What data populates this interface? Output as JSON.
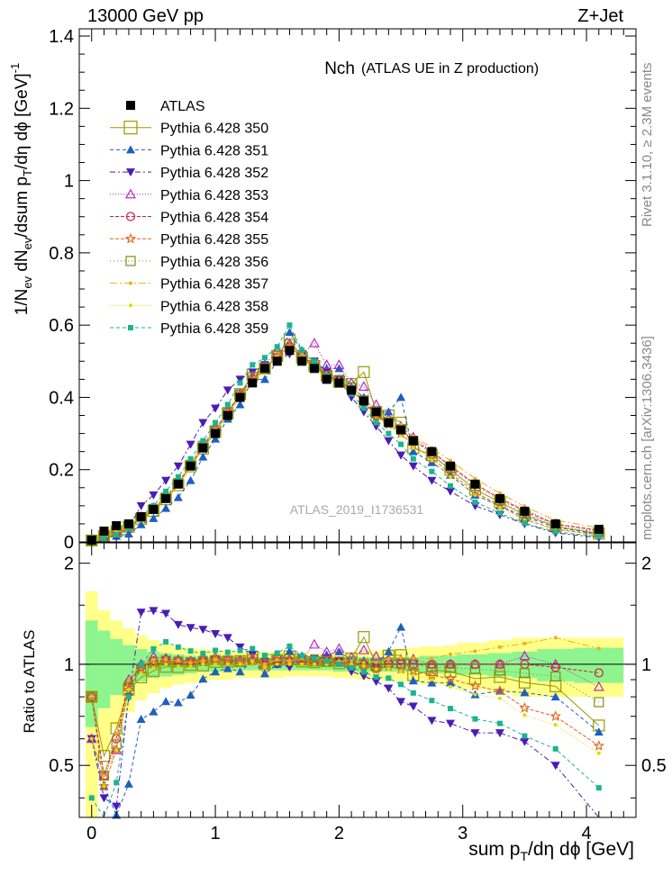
{
  "header": {
    "left": "13000 GeV pp",
    "right": "Z+Jet"
  },
  "side_notes": {
    "rivet": "Rivet 3.1.10, ≥ 2.3M events",
    "mcplots": "mcplots.cern.ch [arXiv:1306.3436]"
  },
  "watermark": "ATLAS_2019_I1736531",
  "chart_data": [
    {
      "type": "scatter",
      "title": "Nch",
      "subtitle": "(ATLAS UE in Z production)",
      "xlabel": "sum p_T/dη dϕ [GeV]",
      "ylabel": "1/N_ev dN_ev/dsum p_T/dη dϕ [GeV]^-1",
      "xlim": [
        -0.1,
        4.4
      ],
      "ylim": [
        0,
        1.42
      ],
      "x_ticks": [
        0,
        1,
        2,
        3,
        4
      ],
      "y_ticks": [
        0,
        0.2,
        0.4,
        0.6,
        0.8,
        1,
        1.2,
        1.4
      ],
      "y_tick_labels": [
        "0",
        "0.2",
        "0.4",
        "0.6",
        "0.8",
        "1",
        "1.2",
        "1.4"
      ],
      "legend_position": "top-left",
      "x": [
        0.0,
        0.1,
        0.2,
        0.3,
        0.4,
        0.5,
        0.6,
        0.7,
        0.8,
        0.9,
        1.0,
        1.1,
        1.2,
        1.3,
        1.4,
        1.5,
        1.6,
        1.7,
        1.8,
        1.9,
        2.0,
        2.1,
        2.2,
        2.3,
        2.4,
        2.5,
        2.6,
        2.75,
        2.9,
        3.1,
        3.3,
        3.5,
        3.75,
        4.1
      ],
      "series": [
        {
          "name": "ATLAS",
          "style": "data",
          "color": "#000000",
          "marker": "filled-square",
          "values": [
            0.005,
            0.03,
            0.045,
            0.05,
            0.07,
            0.09,
            0.12,
            0.16,
            0.21,
            0.26,
            0.3,
            0.35,
            0.4,
            0.44,
            0.48,
            0.5,
            0.53,
            0.5,
            0.48,
            0.45,
            0.44,
            0.42,
            0.39,
            0.36,
            0.33,
            0.31,
            0.28,
            0.25,
            0.21,
            0.16,
            0.12,
            0.085,
            0.05,
            0.035
          ]
        },
        {
          "name": "Pythia 6.428 350",
          "color": "#999900",
          "dash": "",
          "marker": "open-square-large",
          "values": [
            0.004,
            0.016,
            0.029,
            0.042,
            0.064,
            0.086,
            0.118,
            0.157,
            0.209,
            0.258,
            0.305,
            0.356,
            0.409,
            0.463,
            0.48,
            0.515,
            0.56,
            0.51,
            0.487,
            0.46,
            0.443,
            0.437,
            0.47,
            0.36,
            0.35,
            0.33,
            0.26,
            0.24,
            0.2,
            0.145,
            0.11,
            0.075,
            0.043,
            0.023
          ]
        },
        {
          "name": "Pythia 6.428 351",
          "color": "#1f5fbf",
          "dash": "4,3",
          "marker": "filled-triangle-up",
          "values": [
            0.003,
            0.013,
            0.016,
            0.022,
            0.048,
            0.065,
            0.093,
            0.123,
            0.17,
            0.235,
            0.285,
            0.34,
            0.38,
            0.45,
            0.45,
            0.5,
            0.58,
            0.53,
            0.49,
            0.48,
            0.48,
            0.43,
            0.4,
            0.36,
            0.36,
            0.4,
            0.25,
            0.22,
            0.185,
            0.13,
            0.1,
            0.07,
            0.04,
            0.022
          ]
        },
        {
          "name": "Pythia 6.428 352",
          "color": "#4a1cb5",
          "dash": "6,3,2,3",
          "marker": "filled-triangle-down",
          "values": [
            0.003,
            0.012,
            0.017,
            0.04,
            0.1,
            0.13,
            0.17,
            0.21,
            0.27,
            0.33,
            0.37,
            0.42,
            0.45,
            0.47,
            0.49,
            0.5,
            0.52,
            0.52,
            0.5,
            0.47,
            0.45,
            0.4,
            0.36,
            0.32,
            0.28,
            0.24,
            0.21,
            0.17,
            0.14,
            0.1,
            0.075,
            0.05,
            0.025,
            0.012
          ]
        },
        {
          "name": "Pythia 6.428 353",
          "color": "#b21fbd",
          "dash": "1,2",
          "marker": "open-triangle-up",
          "values": [
            0.003,
            0.014,
            0.025,
            0.045,
            0.07,
            0.095,
            0.125,
            0.165,
            0.215,
            0.27,
            0.315,
            0.36,
            0.41,
            0.46,
            0.49,
            0.53,
            0.55,
            0.52,
            0.55,
            0.49,
            0.49,
            0.44,
            0.43,
            0.38,
            0.34,
            0.32,
            0.29,
            0.25,
            0.21,
            0.16,
            0.12,
            0.09,
            0.05,
            0.03
          ]
        },
        {
          "name": "Pythia 6.428 354",
          "color": "#d81b3c",
          "dash": "4,2",
          "marker": "open-circle",
          "values": [
            0.004,
            0.014,
            0.027,
            0.044,
            0.069,
            0.092,
            0.124,
            0.164,
            0.214,
            0.267,
            0.31,
            0.36,
            0.41,
            0.45,
            0.48,
            0.51,
            0.54,
            0.51,
            0.49,
            0.46,
            0.45,
            0.42,
            0.39,
            0.35,
            0.33,
            0.31,
            0.28,
            0.25,
            0.21,
            0.16,
            0.12,
            0.085,
            0.049,
            0.033
          ]
        },
        {
          "name": "Pythia 6.428 355",
          "color": "#e0661a",
          "dash": "4,2",
          "marker": "open-star",
          "values": [
            0.004,
            0.013,
            0.025,
            0.042,
            0.068,
            0.09,
            0.122,
            0.162,
            0.212,
            0.265,
            0.308,
            0.358,
            0.405,
            0.455,
            0.48,
            0.512,
            0.542,
            0.512,
            0.487,
            0.457,
            0.445,
            0.42,
            0.385,
            0.348,
            0.325,
            0.3,
            0.268,
            0.232,
            0.19,
            0.138,
            0.1,
            0.063,
            0.035,
            0.02
          ]
        },
        {
          "name": "Pythia 6.428 356",
          "color": "#7d8f1a",
          "dash": "1,3",
          "marker": "open-square",
          "values": [
            0.004,
            0.014,
            0.026,
            0.043,
            0.068,
            0.091,
            0.123,
            0.163,
            0.213,
            0.266,
            0.309,
            0.359,
            0.407,
            0.456,
            0.482,
            0.514,
            0.548,
            0.514,
            0.49,
            0.46,
            0.448,
            0.428,
            0.392,
            0.355,
            0.333,
            0.312,
            0.28,
            0.245,
            0.205,
            0.155,
            0.115,
            0.08,
            0.046,
            0.027
          ]
        },
        {
          "name": "Pythia 6.428 357",
          "color": "#e8b21a",
          "dash": "8,3,2,3",
          "marker": "small-dot",
          "values": [
            0.003,
            0.014,
            0.028,
            0.045,
            0.07,
            0.093,
            0.124,
            0.164,
            0.212,
            0.266,
            0.31,
            0.35,
            0.4,
            0.44,
            0.48,
            0.515,
            0.54,
            0.52,
            0.5,
            0.465,
            0.45,
            0.43,
            0.395,
            0.365,
            0.342,
            0.325,
            0.292,
            0.26,
            0.225,
            0.175,
            0.135,
            0.098,
            0.06,
            0.039
          ]
        },
        {
          "name": "Pythia 6.428 358",
          "color": "#d4e000",
          "dash": "1,2",
          "marker": "small-dot",
          "values": [
            0.003,
            0.013,
            0.025,
            0.042,
            0.066,
            0.088,
            0.12,
            0.158,
            0.207,
            0.26,
            0.3,
            0.35,
            0.4,
            0.45,
            0.47,
            0.5,
            0.53,
            0.5,
            0.48,
            0.45,
            0.44,
            0.42,
            0.385,
            0.348,
            0.32,
            0.295,
            0.26,
            0.225,
            0.18,
            0.13,
            0.095,
            0.06,
            0.033,
            0.019
          ]
        },
        {
          "name": "Pythia 6.428 359",
          "color": "#1ab58f",
          "dash": "4,3",
          "marker": "filled-square-small",
          "values": [
            0.002,
            0.01,
            0.02,
            0.04,
            0.07,
            0.1,
            0.14,
            0.18,
            0.23,
            0.28,
            0.33,
            0.38,
            0.44,
            0.49,
            0.51,
            0.54,
            0.6,
            0.53,
            0.5,
            0.46,
            0.44,
            0.41,
            0.37,
            0.33,
            0.3,
            0.27,
            0.23,
            0.195,
            0.155,
            0.11,
            0.08,
            0.052,
            0.028,
            0.015
          ]
        }
      ]
    },
    {
      "type": "scatter",
      "title": "",
      "xlabel": "sum p_T/dη dϕ [GeV]",
      "ylabel": "Ratio to ATLAS",
      "xlim": [
        -0.1,
        4.4
      ],
      "ylim": [
        0.35,
        2.3
      ],
      "y_ticks": [
        0.5,
        1,
        2
      ],
      "y_tick_labels": [
        "0.5",
        "1",
        "2"
      ],
      "log_scale": "y",
      "reference_line": 1,
      "band_edges": [
        -0.05,
        0.05,
        0.15,
        0.25,
        0.35,
        0.45,
        0.55,
        0.65,
        0.75,
        0.85,
        0.95,
        1.05,
        1.15,
        1.25,
        1.35,
        1.45,
        1.55,
        1.65,
        1.75,
        1.85,
        1.95,
        2.05,
        2.15,
        2.25,
        2.35,
        2.45,
        2.55,
        2.65,
        2.85,
        2.95,
        3.2,
        3.4,
        3.6,
        3.9,
        4.3
      ],
      "stat_band_halfwidth": [
        0.35,
        0.26,
        0.19,
        0.14,
        0.11,
        0.09,
        0.08,
        0.07,
        0.06,
        0.05,
        0.05,
        0.04,
        0.04,
        0.04,
        0.04,
        0.04,
        0.04,
        0.04,
        0.04,
        0.04,
        0.05,
        0.05,
        0.05,
        0.05,
        0.05,
        0.05,
        0.05,
        0.06,
        0.06,
        0.07,
        0.08,
        0.09,
        0.11,
        0.12
      ],
      "total_band_halfwidth": [
        0.65,
        0.45,
        0.35,
        0.28,
        0.22,
        0.18,
        0.15,
        0.13,
        0.12,
        0.11,
        0.1,
        0.1,
        0.09,
        0.09,
        0.09,
        0.09,
        0.08,
        0.08,
        0.08,
        0.08,
        0.09,
        0.09,
        0.1,
        0.1,
        0.11,
        0.11,
        0.12,
        0.13,
        0.14,
        0.16,
        0.18,
        0.2,
        0.2,
        0.2
      ],
      "band_colors": {
        "stat": "#8ef58e",
        "total": "#ffff8a"
      }
    }
  ]
}
